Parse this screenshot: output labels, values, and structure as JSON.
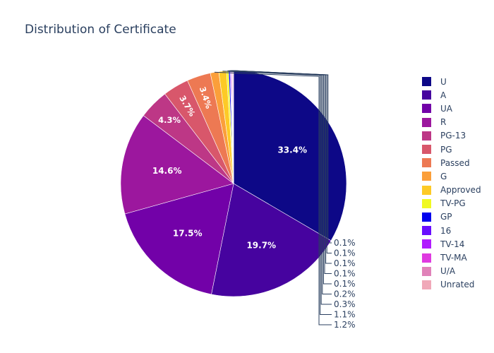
{
  "chart_data": {
    "type": "pie",
    "title": "Distribution of Certificate",
    "categories": [
      "U",
      "A",
      "UA",
      "R",
      "PG-13",
      "PG",
      "Passed",
      "G",
      "Approved",
      "TV-PG",
      "GP",
      "16",
      "TV-14",
      "TV-MA",
      "U/A",
      "Unrated"
    ],
    "values": [
      33.4,
      19.7,
      17.5,
      14.6,
      4.3,
      3.7,
      3.4,
      1.2,
      1.1,
      0.3,
      0.2,
      0.1,
      0.1,
      0.1,
      0.1,
      0.1
    ],
    "labels": [
      "33.4%",
      "19.7%",
      "17.5%",
      "14.6%",
      "4.3%",
      "3.7%",
      "3.4%",
      "1.2%",
      "1.1%",
      "0.3%",
      "0.2%",
      "0.1%",
      "0.1%",
      "0.1%",
      "0.1%",
      "0.1%"
    ],
    "colors": [
      "#0d0887",
      "#46039f",
      "#7201a8",
      "#9c179e",
      "#bd3786",
      "#d8576b",
      "#ed7953",
      "#fb9f3a",
      "#fdca26",
      "#f0f921",
      "#0000ee",
      "#6a0dff",
      "#b11cff",
      "#df3ae0",
      "#e082b9",
      "#f0a8b8"
    ],
    "legend_position": "right",
    "sort": "descending",
    "direction": "clockwise"
  }
}
